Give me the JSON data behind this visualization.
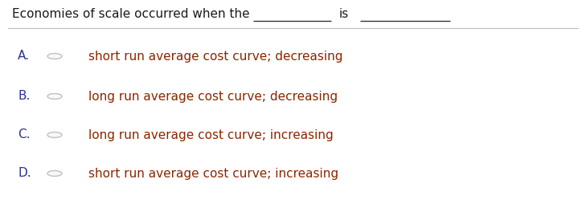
{
  "background_color": "#ffffff",
  "question_text": "Economies of scale occurred when the",
  "is_text": "is",
  "options": [
    {
      "label": "A.",
      "text": "short run average cost curve; decreasing"
    },
    {
      "label": "B.",
      "text": "long run average cost curve; decreasing"
    },
    {
      "label": "C.",
      "text": "long run average cost curve; increasing"
    },
    {
      "label": "D.",
      "text": "short run average cost curve; increasing"
    }
  ],
  "label_color": "#2e3191",
  "text_color": "#8b2500",
  "question_color": "#1a1a1a",
  "line_color": "#bbbbbb",
  "circle_edge_color": "#c0c0c0",
  "circle_face_color": "#f8f8f8",
  "question_fontsize": 11,
  "option_fontsize": 11,
  "label_fontsize": 11,
  "underline_color": "#333333",
  "fig_width": 7.29,
  "fig_height": 2.79,
  "dpi": 100
}
